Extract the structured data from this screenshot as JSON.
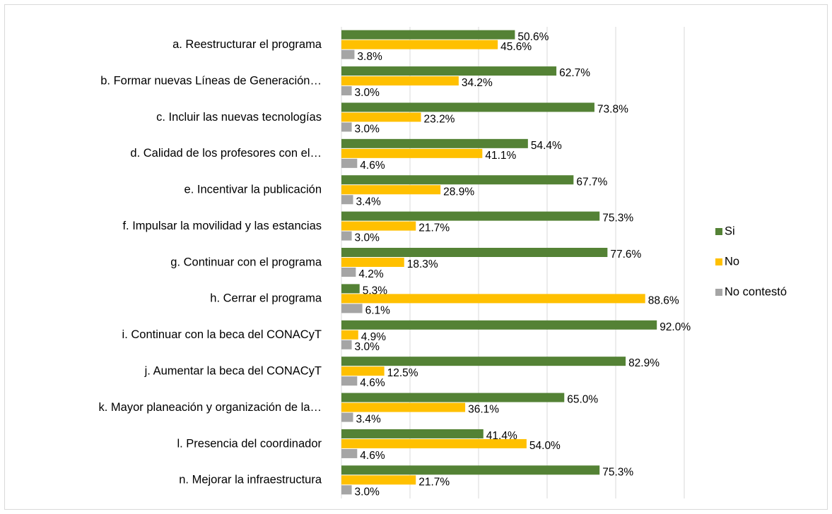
{
  "chart_data": {
    "type": "bar",
    "orientation": "horizontal",
    "categories": [
      "a. Reestructurar el programa",
      "b. Formar nuevas Líneas de Generación…",
      "c. Incluir las nuevas tecnologías",
      "d. Calidad de los profesores con el…",
      "e. Incentivar la publicación",
      "f. Impulsar la movilidad y las estancias",
      "g. Continuar con el programa",
      "h. Cerrar el programa",
      "i. Continuar con la beca del CONACyT",
      "j. Aumentar la beca del CONACyT",
      "k. Mayor planeación y organización de la…",
      "l. Presencia del coordinador",
      "n. Mejorar la infraestructura"
    ],
    "series": [
      {
        "name": "Si",
        "color": "#548235",
        "values": [
          50.6,
          62.7,
          73.8,
          54.4,
          67.7,
          75.3,
          77.6,
          5.3,
          92.0,
          82.9,
          65.0,
          41.4,
          75.3
        ],
        "value_labels": [
          "50.6%",
          "62.7%",
          "73.8%",
          "54.4%",
          "67.7%",
          "75.3%",
          "77.6%",
          "5.3%",
          "92.0%",
          "82.9%",
          "65.0%",
          "41.4%",
          "75.3%"
        ]
      },
      {
        "name": "No",
        "color": "#FFC000",
        "values": [
          45.6,
          34.2,
          23.2,
          41.1,
          28.9,
          21.7,
          18.3,
          88.6,
          4.9,
          12.5,
          36.1,
          54.0,
          21.7
        ],
        "value_labels": [
          "45.6%",
          "34.2%",
          "23.2%",
          "41.1%",
          "28.9%",
          "21.7%",
          "18.3%",
          "88.6%",
          "4.9%",
          "12.5%",
          "36.1%",
          "54.0%",
          "21.7%"
        ]
      },
      {
        "name": "No contestó",
        "color": "#A5A5A5",
        "values": [
          3.8,
          3.0,
          3.0,
          4.6,
          3.4,
          3.0,
          4.2,
          6.1,
          3.0,
          4.6,
          3.4,
          4.6,
          3.0
        ],
        "value_labels": [
          "3.8%",
          "3.0%",
          "3.0%",
          "4.6%",
          "3.4%",
          "3.0%",
          "4.2%",
          "6.1%",
          "3.0%",
          "4.6%",
          "3.4%",
          "4.6%",
          "3.0%"
        ]
      }
    ],
    "xlim": [
      0,
      100
    ],
    "xticks": [
      0,
      20,
      40,
      60,
      80,
      100
    ],
    "grid": true,
    "legend": "right"
  }
}
